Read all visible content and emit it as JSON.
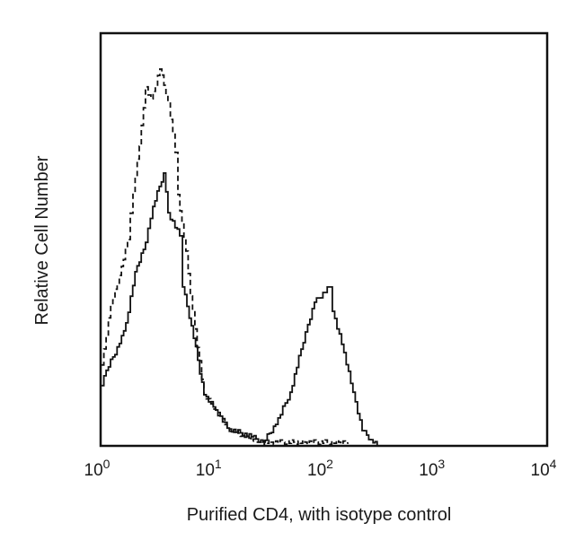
{
  "chart_data": {
    "type": "line",
    "title": "",
    "xlabel": "Purified CD4, with isotype control",
    "ylabel": "Relative Cell Number",
    "xscale": "log",
    "xlim": [
      1,
      10000
    ],
    "ylim": [
      0,
      100
    ],
    "x_ticks": [
      {
        "base": "10",
        "exp": "0"
      },
      {
        "base": "10",
        "exp": "1"
      },
      {
        "base": "10",
        "exp": "2"
      },
      {
        "base": "10",
        "exp": "3"
      },
      {
        "base": "10",
        "exp": "4"
      }
    ],
    "grid": false,
    "series": [
      {
        "style": "solid",
        "color": "#111111",
        "x": [
          1.02,
          1.12,
          1.47,
          1.68,
          2.03,
          2.52,
          2.93,
          3.66,
          4.01,
          5.1,
          5.41,
          6.49,
          8.41,
          10.7,
          13.6,
          22.4,
          28.5,
          36.9,
          49.7,
          68.2,
          82.1,
          112,
          119,
          151,
          182,
          220,
          264,
          300
        ],
        "y": [
          14.6,
          18.3,
          24.8,
          29.8,
          42.2,
          49.3,
          58.0,
          66.1,
          56.5,
          50.9,
          38.5,
          29.1,
          12.4,
          8.7,
          4.3,
          2.2,
          0.9,
          5.2,
          13.0,
          27.6,
          34.8,
          38.5,
          32.6,
          22.6,
          13.0,
          3.7,
          1.5,
          0
        ]
      },
      {
        "style": "dashed",
        "color": "#111111",
        "x": [
          1.02,
          1.23,
          1.47,
          1.74,
          1.95,
          2.22,
          2.52,
          2.82,
          3.39,
          4.01,
          4.65,
          4.92,
          5.81,
          6.36,
          8.41,
          10.7,
          13.6,
          25.5,
          163
        ],
        "y": [
          19.6,
          34.1,
          41.3,
          50.0,
          61.7,
          72.6,
          87.0,
          84.1,
          91.3,
          83.5,
          71.1,
          60.9,
          47.2,
          36.3,
          12.4,
          8.7,
          4.3,
          0.9,
          0.9
        ]
      }
    ]
  }
}
